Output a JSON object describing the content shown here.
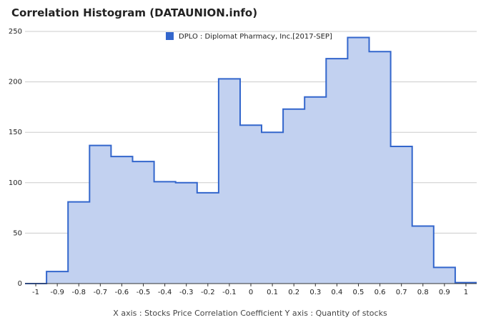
{
  "title": "Correlation Histogram (DATAUNION.info)",
  "colors": {
    "line": "#3366cc",
    "fill": "#c2d1f0",
    "grid": "#cccccc",
    "axis": "#333333"
  },
  "chart_data": {
    "type": "area",
    "title": "Correlation Histogram (DATAUNION.info)",
    "xlabel": "X axis : Stocks Price Correlation Coefficient  Y axis : Quantity of stocks",
    "ylabel": "",
    "legend": {
      "position": "top",
      "entries": [
        "DPLO : Diplomat Pharmacy, Inc.[2017-SEP]"
      ]
    },
    "xlim": [
      -1.05,
      1.05
    ],
    "ylim": [
      0,
      250
    ],
    "grid": true,
    "x_ticks": [
      "-1",
      "-0.9",
      "-0.8",
      "-0.7",
      "-0.6",
      "-0.5",
      "-0.4",
      "-0.3",
      "-0.2",
      "-0.1",
      "0",
      "0.1",
      "0.2",
      "0.3",
      "0.4",
      "0.5",
      "0.6",
      "0.7",
      "0.8",
      "0.9",
      "1"
    ],
    "y_ticks": [
      "0",
      "50",
      "100",
      "150",
      "200",
      "250"
    ],
    "series": [
      {
        "name": "DPLO : Diplomat Pharmacy, Inc.[2017-SEP]",
        "bins": [
          {
            "from": -1.05,
            "to": -0.95,
            "value": 0
          },
          {
            "from": -0.95,
            "to": -0.85,
            "value": 12
          },
          {
            "from": -0.85,
            "to": -0.75,
            "value": 81
          },
          {
            "from": -0.75,
            "to": -0.65,
            "value": 137
          },
          {
            "from": -0.65,
            "to": -0.55,
            "value": 126
          },
          {
            "from": -0.55,
            "to": -0.45,
            "value": 121
          },
          {
            "from": -0.45,
            "to": -0.35,
            "value": 101
          },
          {
            "from": -0.35,
            "to": -0.25,
            "value": 100
          },
          {
            "from": -0.25,
            "to": -0.15,
            "value": 90
          },
          {
            "from": -0.15,
            "to": -0.05,
            "value": 203
          },
          {
            "from": -0.05,
            "to": 0.05,
            "value": 157
          },
          {
            "from": 0.05,
            "to": 0.15,
            "value": 150
          },
          {
            "from": 0.15,
            "to": 0.25,
            "value": 173
          },
          {
            "from": 0.25,
            "to": 0.35,
            "value": 185
          },
          {
            "from": 0.35,
            "to": 0.45,
            "value": 223
          },
          {
            "from": 0.45,
            "to": 0.55,
            "value": 244
          },
          {
            "from": 0.55,
            "to": 0.65,
            "value": 230
          },
          {
            "from": 0.65,
            "to": 0.75,
            "value": 136
          },
          {
            "from": 0.75,
            "to": 0.85,
            "value": 57
          },
          {
            "from": 0.85,
            "to": 0.95,
            "value": 16
          },
          {
            "from": 0.95,
            "to": 1.05,
            "value": 1
          }
        ]
      }
    ]
  }
}
